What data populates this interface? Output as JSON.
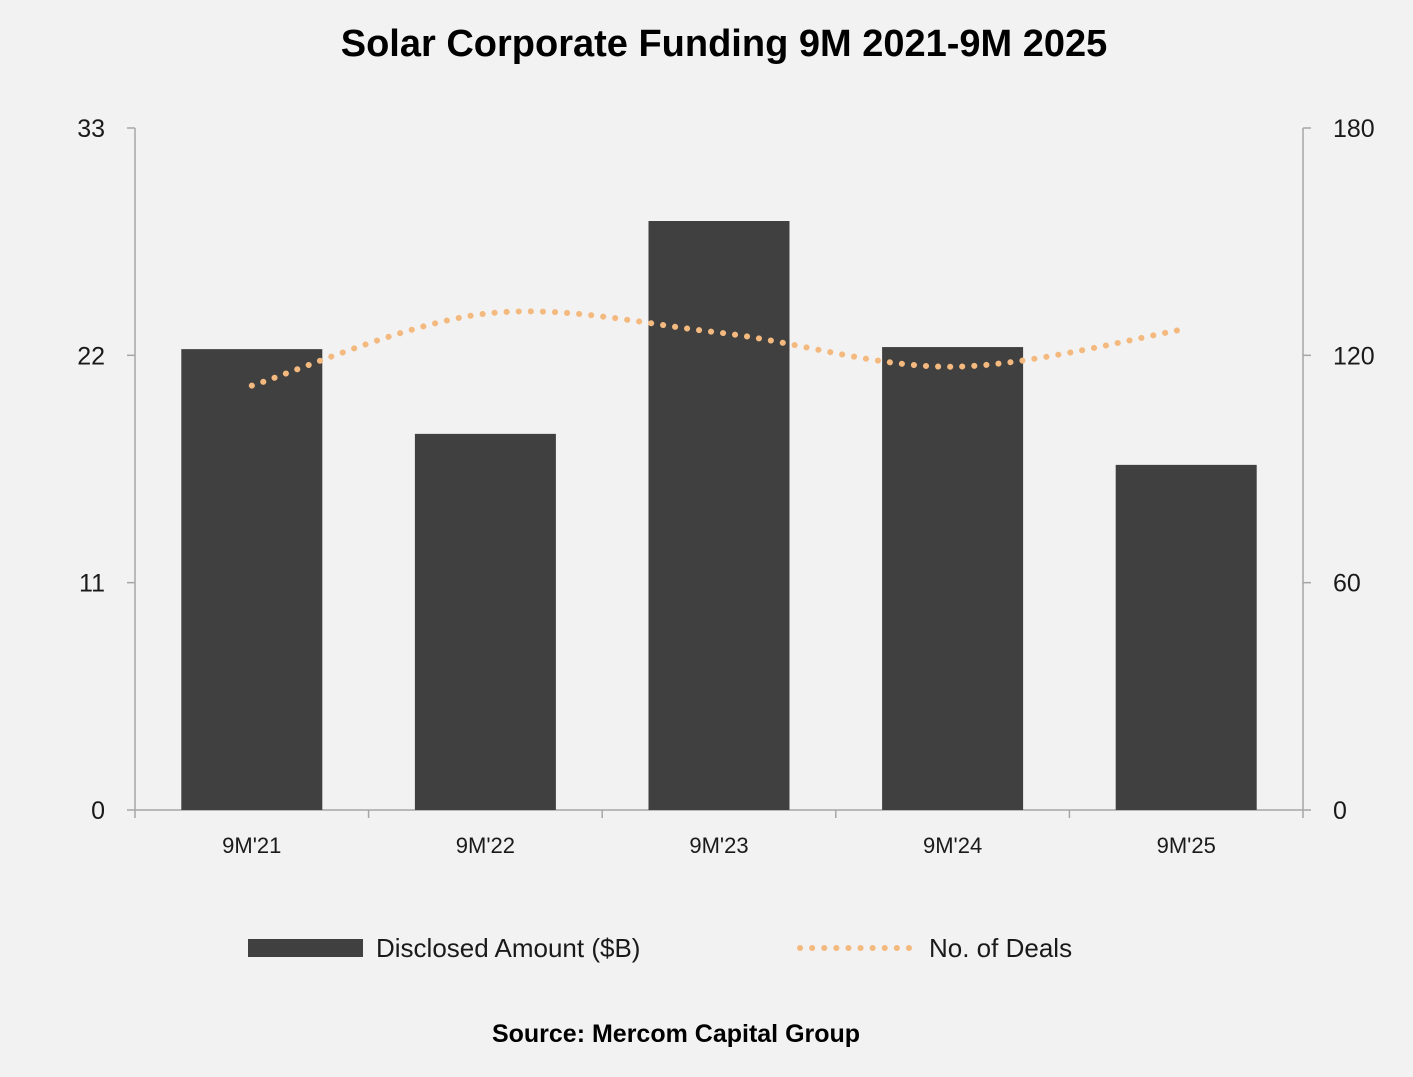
{
  "chart_data": {
    "type": "bar",
    "title": "Solar Corporate Funding 9M 2021-9M 2025",
    "categories": [
      "9M'21",
      "9M'22",
      "9M'23",
      "9M'24",
      "9M'25"
    ],
    "series": [
      {
        "name": "Disclosed Amount ($B)",
        "type": "bar",
        "axis": "left",
        "color": "#404040",
        "values": [
          22.3,
          18.2,
          28.5,
          22.4,
          16.7
        ]
      },
      {
        "name": "No. of Deals",
        "type": "line",
        "style": "dotted",
        "axis": "right",
        "color": "#f4b97e",
        "values": [
          112,
          131,
          126,
          117,
          127
        ]
      }
    ],
    "y_left": {
      "ylim": [
        0,
        33
      ],
      "ticks": [
        "0",
        "11",
        "22",
        "33"
      ]
    },
    "y_right": {
      "ylim": [
        0,
        180
      ],
      "ticks": [
        "0",
        "60",
        "120",
        "180"
      ]
    },
    "legend_placement": "bottom",
    "grid": false,
    "source": "Source: Mercom Capital Group"
  }
}
